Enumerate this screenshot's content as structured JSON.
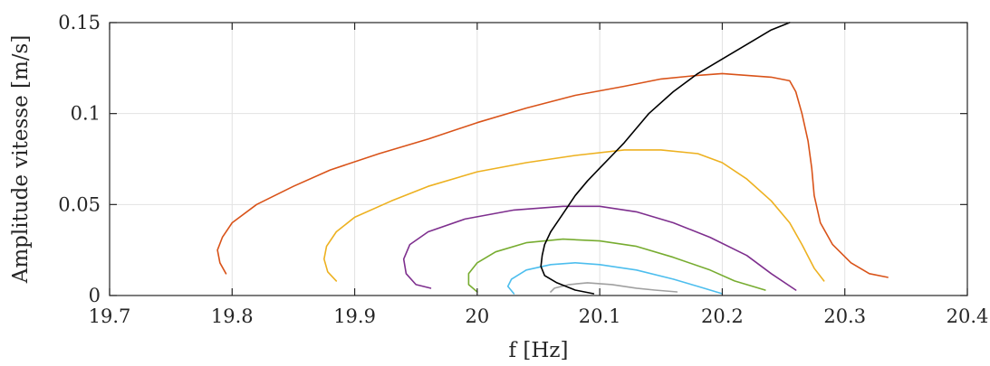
{
  "chart_data": {
    "type": "line",
    "xlabel": "f [Hz]",
    "ylabel": "Amplitude vitesse [m/s]",
    "xlim": [
      19.7,
      20.4
    ],
    "ylim": [
      0,
      0.15
    ],
    "xticks": [
      "19.7",
      "19.8",
      "19.9",
      "20",
      "20.1",
      "20.2",
      "20.3",
      "20.4"
    ],
    "yticks": [
      "0",
      "0.05",
      "0.1",
      "0.15"
    ],
    "grid": true,
    "series": [
      {
        "color": "#D95319",
        "points": [
          [
            19.795,
            0.012
          ],
          [
            19.79,
            0.018
          ],
          [
            19.788,
            0.025
          ],
          [
            19.792,
            0.032
          ],
          [
            19.8,
            0.04
          ],
          [
            19.82,
            0.05
          ],
          [
            19.85,
            0.06
          ],
          [
            19.88,
            0.069
          ],
          [
            19.92,
            0.078
          ],
          [
            19.96,
            0.086
          ],
          [
            20.0,
            0.095
          ],
          [
            20.04,
            0.103
          ],
          [
            20.08,
            0.11
          ],
          [
            20.12,
            0.115
          ],
          [
            20.15,
            0.119
          ],
          [
            20.18,
            0.121
          ],
          [
            20.2,
            0.122
          ],
          [
            20.22,
            0.121
          ],
          [
            20.24,
            0.12
          ],
          [
            20.255,
            0.118
          ],
          [
            20.26,
            0.112
          ],
          [
            20.265,
            0.1
          ],
          [
            20.27,
            0.085
          ],
          [
            20.273,
            0.07
          ],
          [
            20.275,
            0.055
          ],
          [
            20.28,
            0.04
          ],
          [
            20.29,
            0.028
          ],
          [
            20.305,
            0.018
          ],
          [
            20.32,
            0.012
          ],
          [
            20.335,
            0.01
          ]
        ]
      },
      {
        "color": "#EDB120",
        "points": [
          [
            19.885,
            0.008
          ],
          [
            19.878,
            0.013
          ],
          [
            19.875,
            0.02
          ],
          [
            19.877,
            0.027
          ],
          [
            19.885,
            0.035
          ],
          [
            19.9,
            0.043
          ],
          [
            19.93,
            0.052
          ],
          [
            19.96,
            0.06
          ],
          [
            20.0,
            0.068
          ],
          [
            20.04,
            0.073
          ],
          [
            20.08,
            0.077
          ],
          [
            20.12,
            0.08
          ],
          [
            20.15,
            0.08
          ],
          [
            20.18,
            0.078
          ],
          [
            20.2,
            0.073
          ],
          [
            20.22,
            0.064
          ],
          [
            20.24,
            0.052
          ],
          [
            20.255,
            0.04
          ],
          [
            20.265,
            0.028
          ],
          [
            20.275,
            0.015
          ],
          [
            20.283,
            0.008
          ]
        ]
      },
      {
        "color": "#7E2F8E",
        "points": [
          [
            19.962,
            0.004
          ],
          [
            19.95,
            0.006
          ],
          [
            19.942,
            0.012
          ],
          [
            19.94,
            0.02
          ],
          [
            19.945,
            0.028
          ],
          [
            19.96,
            0.035
          ],
          [
            19.99,
            0.042
          ],
          [
            20.03,
            0.047
          ],
          [
            20.07,
            0.049
          ],
          [
            20.1,
            0.049
          ],
          [
            20.13,
            0.046
          ],
          [
            20.16,
            0.04
          ],
          [
            20.19,
            0.032
          ],
          [
            20.22,
            0.022
          ],
          [
            20.24,
            0.012
          ],
          [
            20.26,
            0.003
          ]
        ]
      },
      {
        "color": "#77AC30",
        "points": [
          [
            20.0,
            0.002
          ],
          [
            19.993,
            0.006
          ],
          [
            19.993,
            0.012
          ],
          [
            20.0,
            0.018
          ],
          [
            20.015,
            0.024
          ],
          [
            20.04,
            0.029
          ],
          [
            20.07,
            0.031
          ],
          [
            20.1,
            0.03
          ],
          [
            20.13,
            0.027
          ],
          [
            20.16,
            0.021
          ],
          [
            20.19,
            0.014
          ],
          [
            20.21,
            0.008
          ],
          [
            20.235,
            0.003
          ]
        ]
      },
      {
        "color": "#4DBEEE",
        "points": [
          [
            20.03,
            0.001
          ],
          [
            20.025,
            0.005
          ],
          [
            20.028,
            0.009
          ],
          [
            20.04,
            0.014
          ],
          [
            20.06,
            0.017
          ],
          [
            20.08,
            0.018
          ],
          [
            20.1,
            0.017
          ],
          [
            20.13,
            0.014
          ],
          [
            20.16,
            0.009
          ],
          [
            20.18,
            0.005
          ],
          [
            20.2,
            0.001
          ]
        ]
      },
      {
        "color": "#A0A0A0",
        "points": [
          [
            20.06,
            0.002
          ],
          [
            20.063,
            0.004
          ],
          [
            20.075,
            0.006
          ],
          [
            20.09,
            0.007
          ],
          [
            20.11,
            0.006
          ],
          [
            20.13,
            0.004
          ],
          [
            20.145,
            0.003
          ],
          [
            20.163,
            0.002
          ]
        ]
      },
      {
        "color": "#000000",
        "points": [
          [
            20.095,
            0.001
          ],
          [
            20.08,
            0.003
          ],
          [
            20.065,
            0.007
          ],
          [
            20.055,
            0.011
          ],
          [
            20.052,
            0.016
          ],
          [
            20.053,
            0.022
          ],
          [
            20.055,
            0.028
          ],
          [
            20.06,
            0.035
          ],
          [
            20.07,
            0.045
          ],
          [
            20.08,
            0.055
          ],
          [
            20.09,
            0.063
          ],
          [
            20.1,
            0.07
          ],
          [
            20.11,
            0.077
          ],
          [
            20.12,
            0.084
          ],
          [
            20.14,
            0.1
          ],
          [
            20.16,
            0.112
          ],
          [
            20.18,
            0.122
          ],
          [
            20.2,
            0.13
          ],
          [
            20.22,
            0.138
          ],
          [
            20.24,
            0.146
          ],
          [
            20.255,
            0.15
          ]
        ]
      }
    ]
  }
}
